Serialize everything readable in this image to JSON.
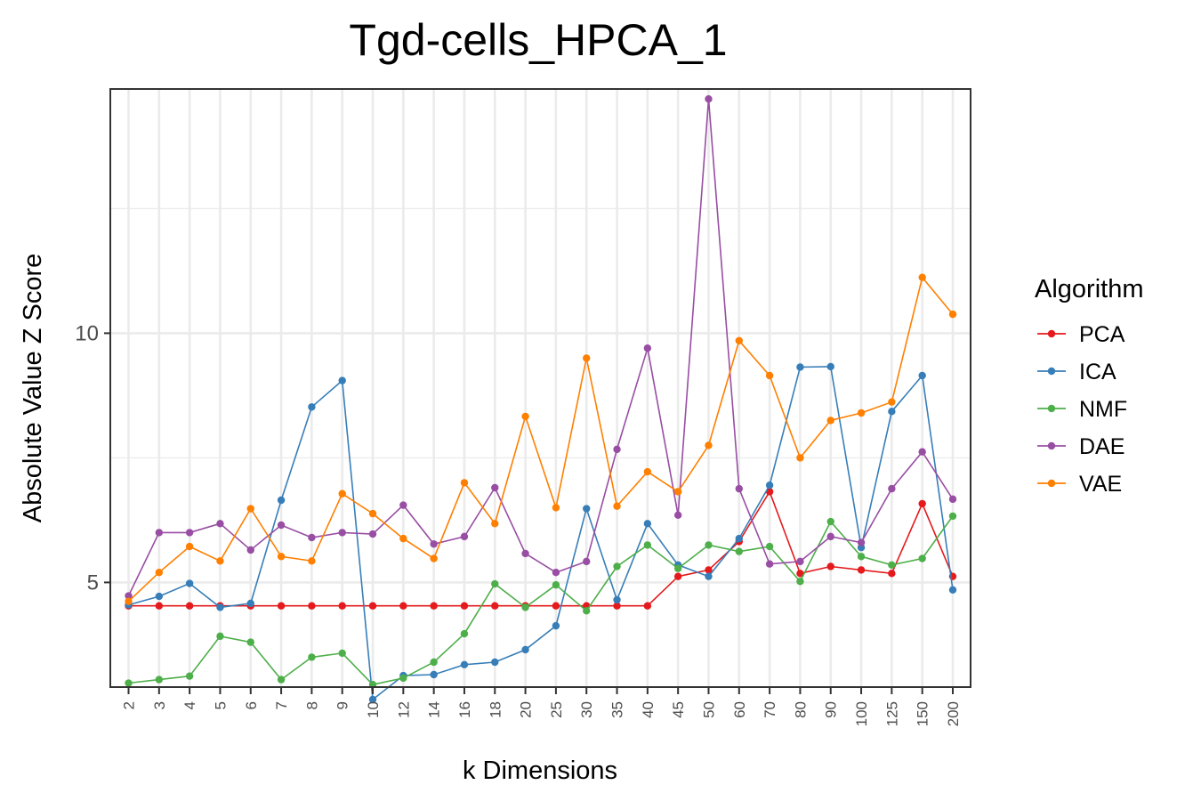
{
  "chart_data": {
    "type": "line",
    "title": "Tgd-cells_HPCA_1",
    "xlabel": "k Dimensions",
    "ylabel": "Absolute Value Z Score",
    "x_is_categorical": true,
    "categories": [
      "2",
      "3",
      "4",
      "5",
      "6",
      "7",
      "8",
      "9",
      "10",
      "12",
      "14",
      "16",
      "18",
      "20",
      "25",
      "30",
      "35",
      "40",
      "45",
      "50",
      "60",
      "70",
      "80",
      "90",
      "100",
      "125",
      "150",
      "200"
    ],
    "ylim": [
      2.9,
      14.9
    ],
    "yticks": [
      5,
      10
    ],
    "grid": true,
    "legend": {
      "title": "Algorithm",
      "position": "right"
    },
    "series": [
      {
        "name": "PCA",
        "color": "#e41a1c",
        "values": [
          4.53,
          4.53,
          4.53,
          4.53,
          4.53,
          4.53,
          4.53,
          4.53,
          4.53,
          4.53,
          4.53,
          4.53,
          4.53,
          4.53,
          4.53,
          4.53,
          4.53,
          4.53,
          5.12,
          5.25,
          5.82,
          6.82,
          5.18,
          5.32,
          5.25,
          5.18,
          6.58,
          5.12
        ]
      },
      {
        "name": "ICA",
        "color": "#377eb8",
        "values": [
          4.55,
          4.72,
          4.98,
          4.5,
          4.58,
          6.65,
          8.52,
          9.05,
          2.65,
          3.13,
          3.15,
          3.35,
          3.4,
          3.65,
          4.13,
          6.48,
          4.65,
          6.18,
          5.35,
          5.12,
          5.88,
          6.95,
          9.32,
          9.33,
          5.7,
          8.43,
          9.15,
          4.85
        ]
      },
      {
        "name": "NMF",
        "color": "#4daf4a",
        "values": [
          2.98,
          3.05,
          3.12,
          3.92,
          3.8,
          3.05,
          3.5,
          3.58,
          2.95,
          3.08,
          3.4,
          3.97,
          4.97,
          4.5,
          4.95,
          4.43,
          5.32,
          5.75,
          5.28,
          5.75,
          5.62,
          5.72,
          5.02,
          6.22,
          5.52,
          5.35,
          5.48,
          6.33
        ]
      },
      {
        "name": "DAE",
        "color": "#984ea3",
        "values": [
          4.73,
          6.0,
          6.0,
          6.18,
          5.65,
          6.15,
          5.9,
          6.0,
          5.97,
          6.55,
          5.77,
          5.92,
          6.9,
          5.58,
          5.2,
          5.42,
          7.67,
          9.7,
          6.35,
          14.7,
          6.88,
          5.37,
          5.42,
          5.92,
          5.8,
          6.88,
          7.62,
          6.67
        ]
      },
      {
        "name": "VAE",
        "color": "#ff7f00",
        "values": [
          4.62,
          5.2,
          5.72,
          5.43,
          6.48,
          5.52,
          5.43,
          6.78,
          6.38,
          5.88,
          5.48,
          7.0,
          6.18,
          8.33,
          6.5,
          9.5,
          6.53,
          7.22,
          6.82,
          7.75,
          9.85,
          9.15,
          7.5,
          8.25,
          8.4,
          8.62,
          11.12,
          10.38
        ]
      }
    ]
  }
}
